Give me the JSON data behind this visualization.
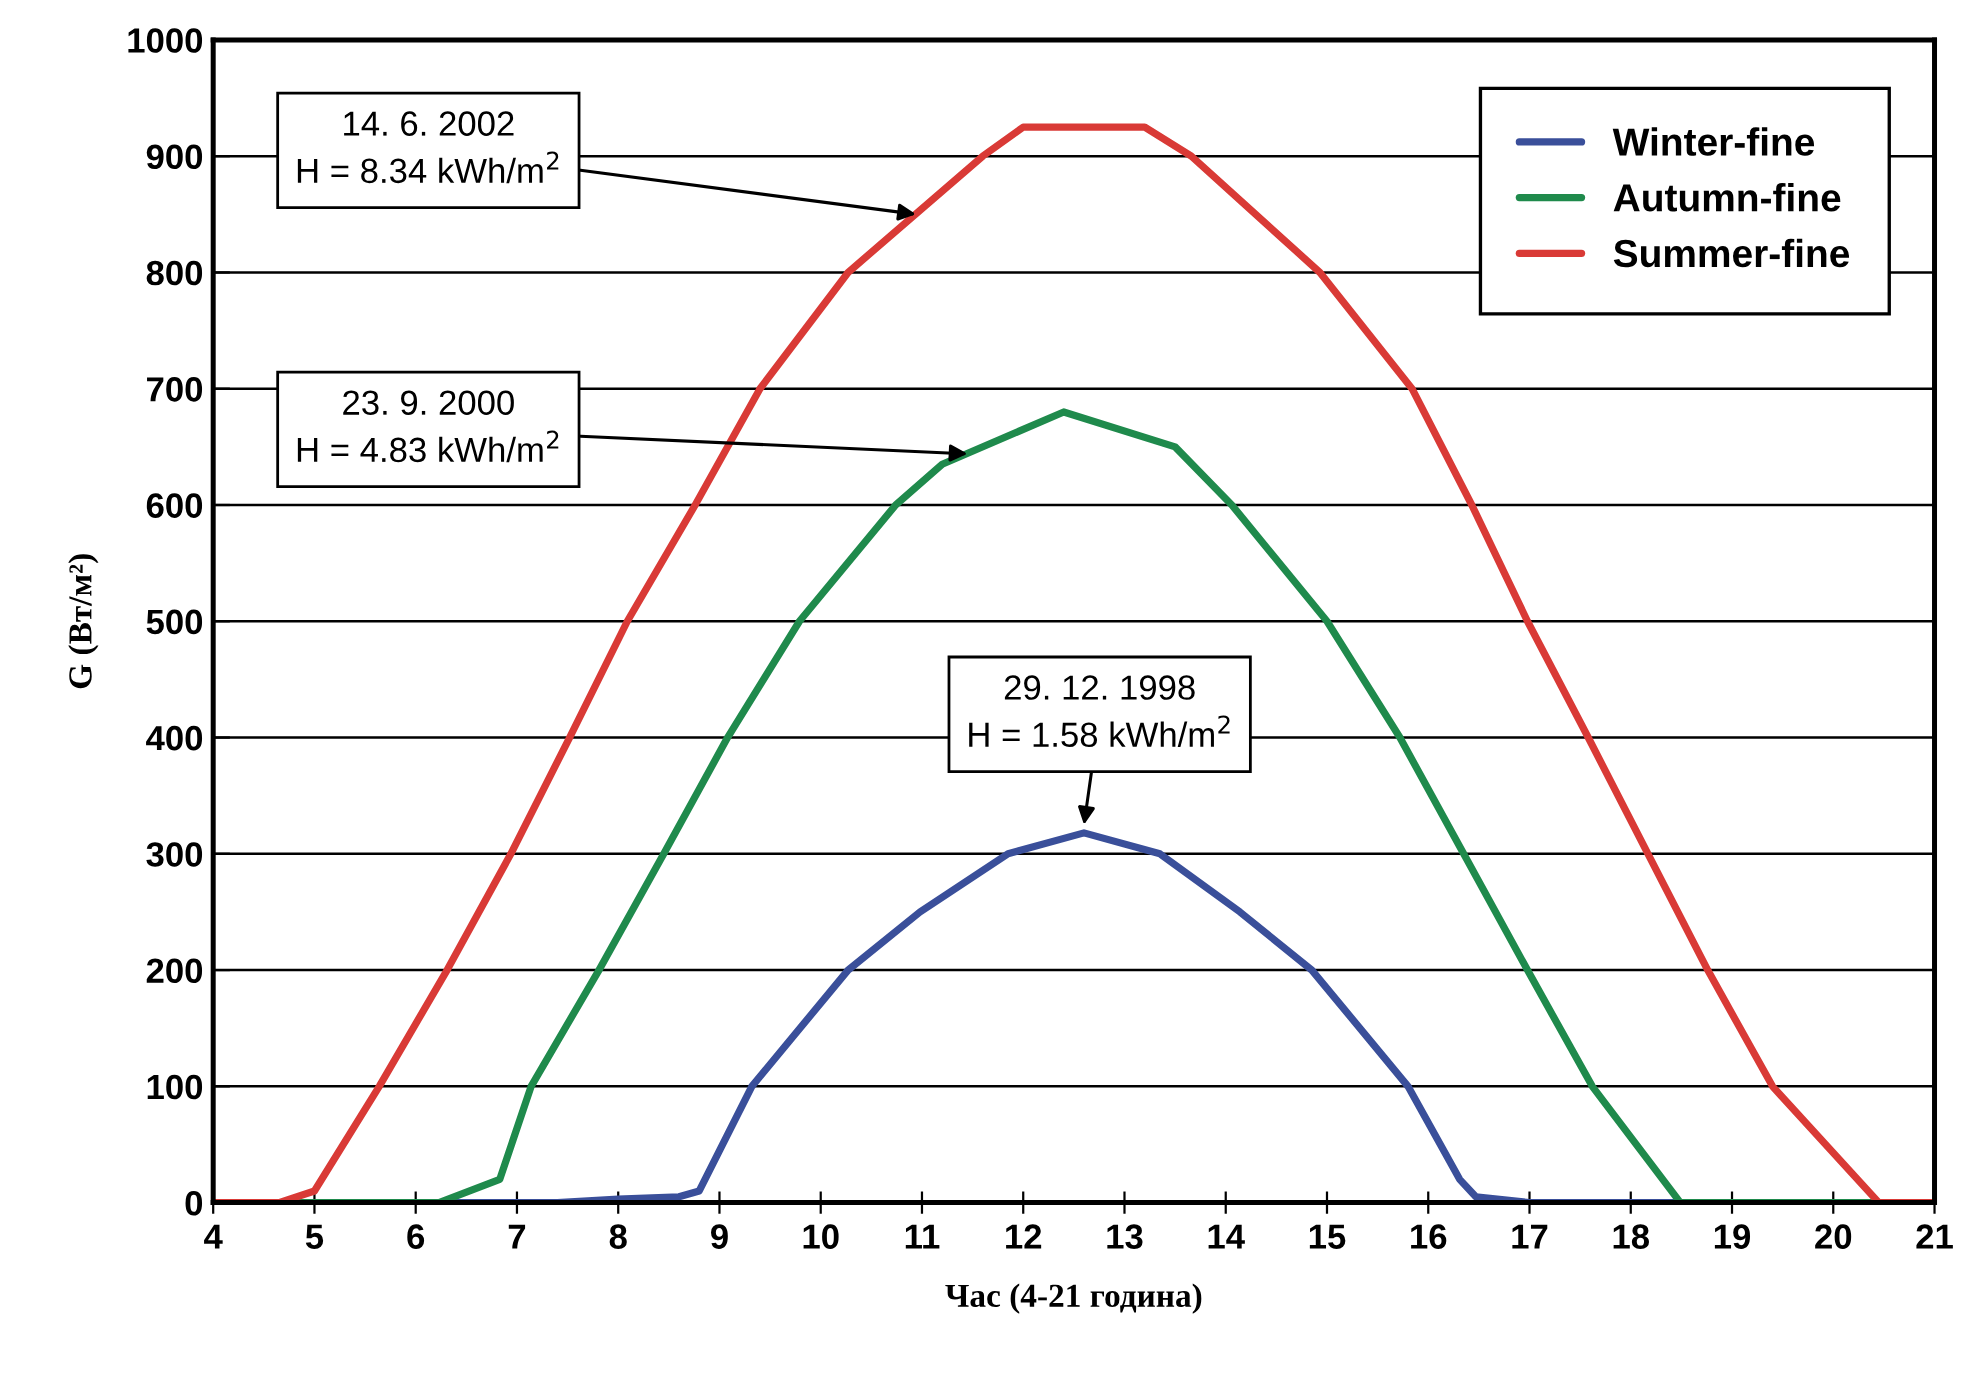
{
  "chart_data": {
    "type": "line",
    "xlabel": "Час (4-21 година)",
    "ylabel": "G (Вт/м²)",
    "xlim": [
      4,
      21
    ],
    "xticks": [
      4,
      5,
      6,
      7,
      8,
      9,
      10,
      11,
      12,
      13,
      14,
      15,
      16,
      17,
      18,
      19,
      20,
      21
    ],
    "ylim": [
      0,
      1000
    ],
    "yticks": [
      0,
      100,
      200,
      300,
      400,
      500,
      600,
      700,
      800,
      900,
      1000
    ],
    "grid": "y",
    "legend": "top right",
    "marker": "none",
    "line_style": "solid",
    "series": [
      {
        "name": "Winter-fine",
        "color": "#3a4f9a",
        "x": [
          4,
          7.4,
          8.0,
          8.6,
          8.8,
          9.32,
          10.27,
          10.98,
          11.85,
          12.6,
          13.35,
          14.14,
          14.85,
          15.8,
          16.31,
          16.47,
          17,
          21
        ],
        "values": [
          0,
          0,
          3,
          5,
          10,
          100,
          200,
          250,
          300,
          318,
          300,
          250,
          200,
          100,
          20,
          5,
          0,
          0
        ]
      },
      {
        "name": "Autumn-fine",
        "color": "#1f8a4c",
        "x": [
          4,
          6.23,
          6.83,
          7.14,
          7.81,
          8.45,
          9.08,
          9.79,
          10.74,
          11.2,
          12.4,
          13.5,
          14.06,
          15.0,
          15.72,
          16.35,
          16.98,
          17.62,
          18.49,
          21
        ],
        "values": [
          0,
          0,
          20,
          100,
          200,
          300,
          400,
          500,
          600,
          635,
          680,
          650,
          600,
          500,
          400,
          300,
          200,
          100,
          0,
          0
        ]
      },
      {
        "name": "Summer-fine",
        "color": "#d93a36",
        "x": [
          4,
          4.65,
          5.0,
          5.64,
          6.31,
          6.94,
          7.52,
          8.09,
          8.76,
          9.4,
          10.27,
          11.6,
          12.0,
          13.2,
          13.66,
          14.93,
          15.84,
          16.43,
          16.98,
          17.58,
          18.17,
          18.76,
          19.4,
          20.45,
          21
        ],
        "values": [
          0,
          0,
          10,
          100,
          200,
          300,
          400,
          500,
          600,
          700,
          800,
          900,
          925,
          925,
          900,
          800,
          700,
          600,
          500,
          400,
          300,
          200,
          100,
          0,
          0
        ]
      }
    ],
    "annotations": [
      {
        "text": "14. 6. 2002\nH = 8.34 kWh/m$^{2}$",
        "x": 10.94,
        "y": 850
      },
      {
        "text": "23. 9. 2000\nH = 4.83 kWh/m$^{2}$",
        "x": 11.45,
        "y": 644
      },
      {
        "text": "29. 12. 1998\nH = 1.58 kWh/m$^{2}$",
        "x": 12.6,
        "y": 325
      }
    ]
  }
}
